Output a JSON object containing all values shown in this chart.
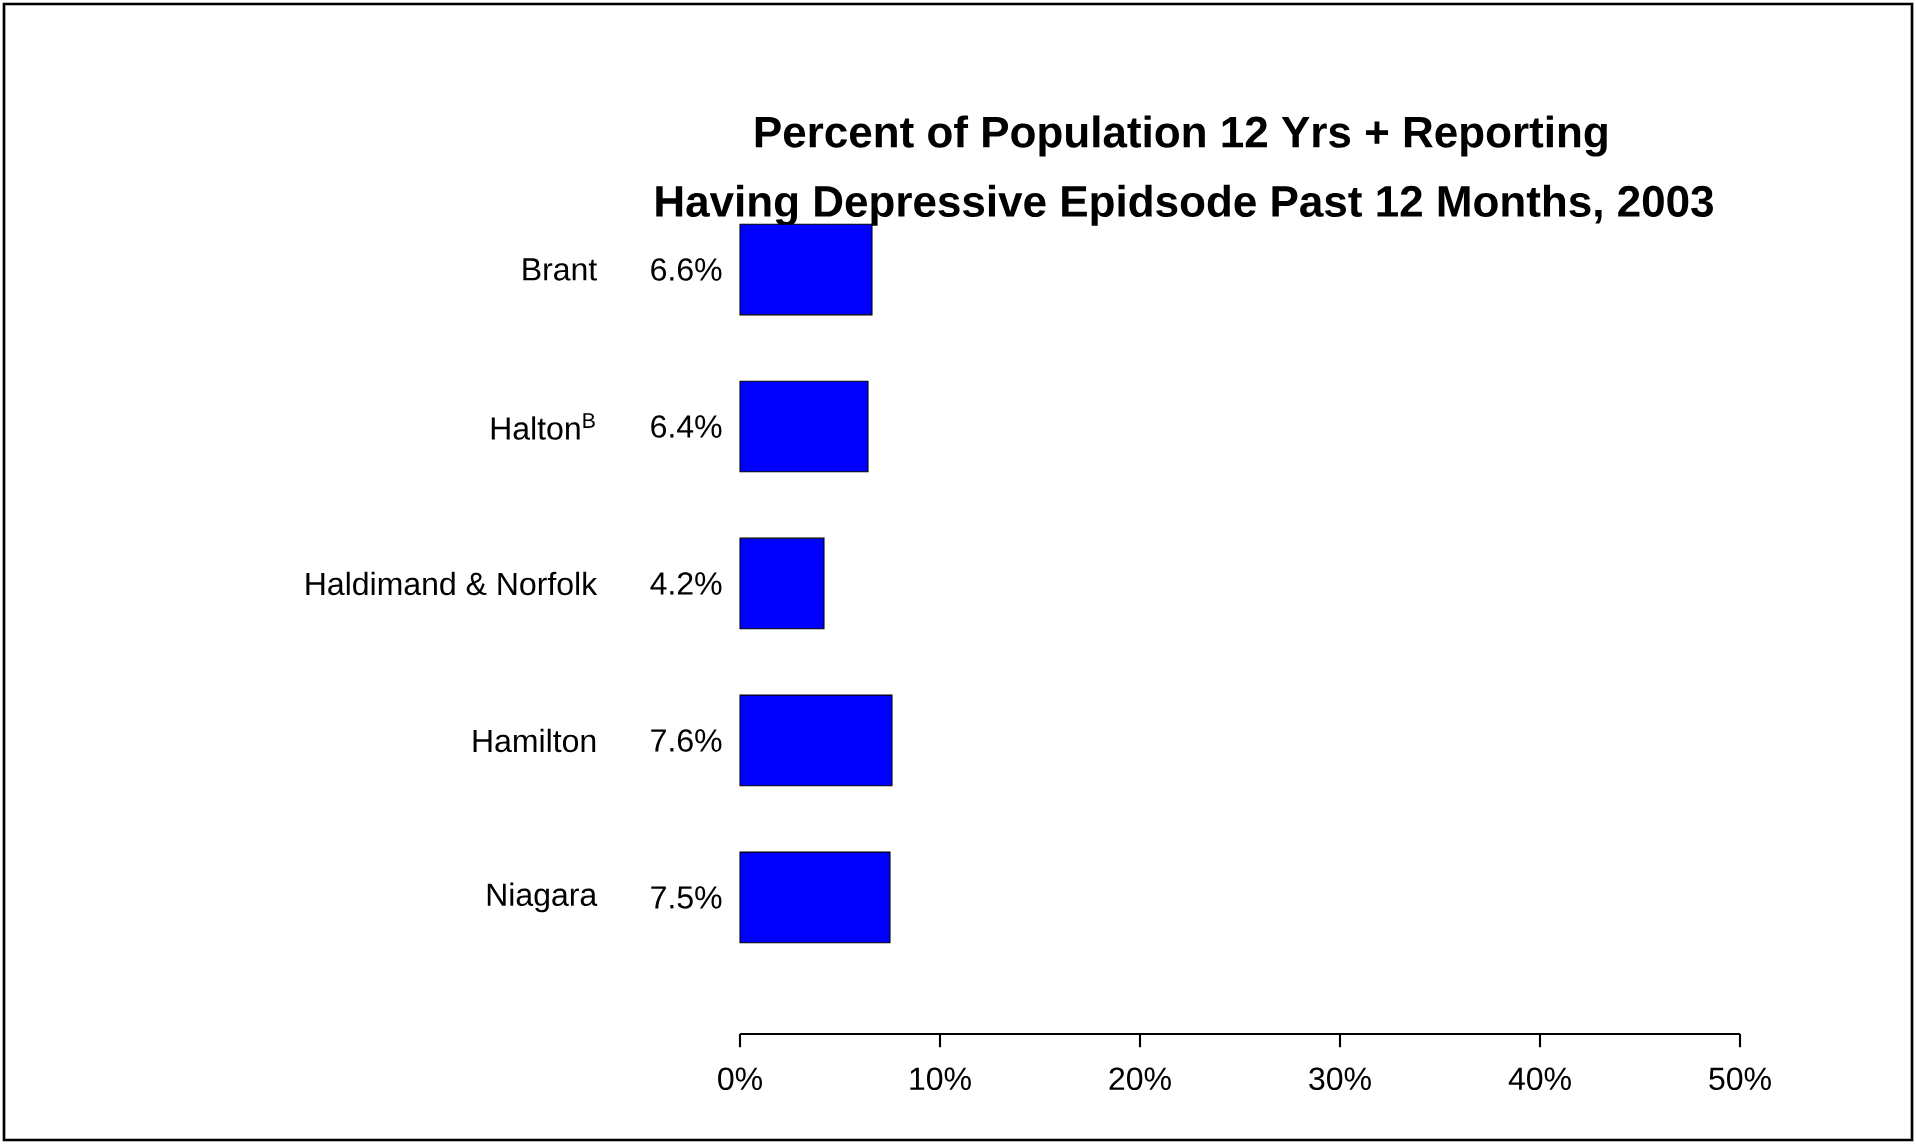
{
  "chart_data": {
    "type": "bar",
    "orientation": "horizontal",
    "title": "Percent of Population 12 Yrs + Reporting",
    "subtitle": "Having Depressive Epidsode Past 12 Months, 2003",
    "categories": [
      "Brant",
      "Halton$^{B}$",
      "Haldimand & Norfolk",
      "Hamilton",
      "Niagara"
    ],
    "values": [
      6.6,
      6.4,
      4.2,
      7.6,
      7.5
    ],
    "value_labels": [
      "6.6%",
      "6.4%",
      "4.2%",
      "7.6%",
      "7.5%"
    ],
    "color": "#0000ff",
    "xlim": [
      0,
      50
    ],
    "xticks": [
      {
        "value": 0,
        "label": "0%"
      },
      {
        "value": 10,
        "label": "10%"
      },
      {
        "value": 20,
        "label": "20%"
      },
      {
        "value": 30,
        "label": "30%"
      },
      {
        "value": 40,
        "label": "40%"
      },
      {
        "value": 50,
        "label": "50%"
      }
    ]
  }
}
